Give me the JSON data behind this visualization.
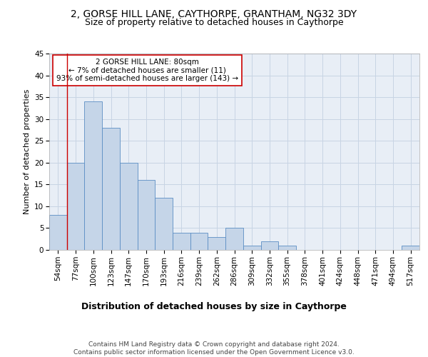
{
  "title1": "2, GORSE HILL LANE, CAYTHORPE, GRANTHAM, NG32 3DY",
  "title2": "Size of property relative to detached houses in Caythorpe",
  "xlabel": "Distribution of detached houses by size in Caythorpe",
  "ylabel": "Number of detached properties",
  "categories": [
    "54sqm",
    "77sqm",
    "100sqm",
    "123sqm",
    "147sqm",
    "170sqm",
    "193sqm",
    "216sqm",
    "239sqm",
    "262sqm",
    "286sqm",
    "309sqm",
    "332sqm",
    "355sqm",
    "378sqm",
    "401sqm",
    "424sqm",
    "448sqm",
    "471sqm",
    "494sqm",
    "517sqm"
  ],
  "values": [
    8,
    20,
    34,
    28,
    20,
    16,
    12,
    4,
    4,
    3,
    5,
    1,
    2,
    1,
    0,
    0,
    0,
    0,
    0,
    0,
    1
  ],
  "bar_color": "#c5d5e8",
  "bar_edge_color": "#5b8ec4",
  "grid_color": "#c8d4e4",
  "background_color": "#e8eef6",
  "vline_color": "#cc0000",
  "annotation_text": "2 GORSE HILL LANE: 80sqm\n← 7% of detached houses are smaller (11)\n93% of semi-detached houses are larger (143) →",
  "annotation_box_color": "#ffffff",
  "annotation_box_edge": "#cc0000",
  "ylim": [
    0,
    45
  ],
  "yticks": [
    0,
    5,
    10,
    15,
    20,
    25,
    30,
    35,
    40,
    45
  ],
  "footer": "Contains HM Land Registry data © Crown copyright and database right 2024.\nContains public sector information licensed under the Open Government Licence v3.0.",
  "title1_fontsize": 10,
  "title2_fontsize": 9,
  "xlabel_fontsize": 9,
  "ylabel_fontsize": 8,
  "tick_fontsize": 7.5,
  "footer_fontsize": 6.5,
  "annotation_fontsize": 7.5
}
